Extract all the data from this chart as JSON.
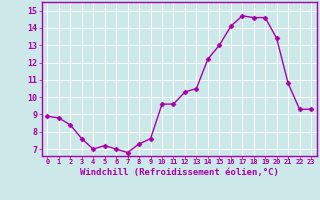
{
  "x": [
    0,
    1,
    2,
    3,
    4,
    5,
    6,
    7,
    8,
    9,
    10,
    11,
    12,
    13,
    14,
    15,
    16,
    17,
    18,
    19,
    20,
    21,
    22,
    23
  ],
  "y": [
    8.9,
    8.8,
    8.4,
    7.6,
    7.0,
    7.2,
    7.0,
    6.8,
    7.3,
    7.6,
    9.6,
    9.6,
    10.3,
    10.5,
    12.2,
    13.0,
    14.1,
    14.7,
    14.6,
    14.6,
    13.4,
    10.8,
    9.3,
    9.3
  ],
  "line_color": "#aa00aa",
  "marker": "D",
  "marker_size": 2.5,
  "linewidth": 1.0,
  "xlabel": "Windchill (Refroidissement éolien,°C)",
  "xlabel_fontsize": 6.5,
  "xtick_labels": [
    "0",
    "1",
    "2",
    "3",
    "4",
    "5",
    "6",
    "7",
    "8",
    "9",
    "10",
    "11",
    "12",
    "13",
    "14",
    "15",
    "16",
    "17",
    "18",
    "19",
    "20",
    "21",
    "22",
    "23"
  ],
  "ytick_labels": [
    "7",
    "8",
    "9",
    "10",
    "11",
    "12",
    "13",
    "14",
    "15"
  ],
  "yticks": [
    7,
    8,
    9,
    10,
    11,
    12,
    13,
    14,
    15
  ],
  "ylim": [
    6.6,
    15.5
  ],
  "xlim": [
    -0.5,
    23.5
  ],
  "bg_color": "#cce8e8",
  "grid_color": "#b0d8d8",
  "spine_color": "#aa00aa",
  "tick_color": "#aa00aa",
  "label_color": "#aa00aa"
}
